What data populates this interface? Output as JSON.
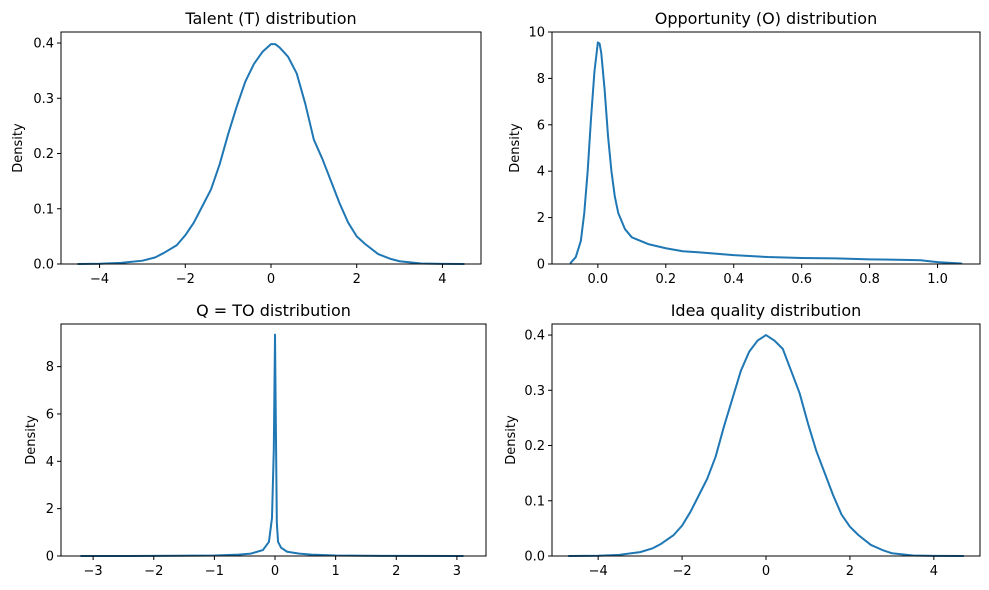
{
  "figure": {
    "background": "#ffffff",
    "line_color": "#1f77b4"
  },
  "chart_data": [
    {
      "type": "line",
      "title": "Talent (T) distribution",
      "xlabel": "",
      "ylabel": "Density",
      "xlim": [
        -4.9,
        4.9
      ],
      "ylim": [
        0,
        0.42
      ],
      "xticks": [
        -4,
        -2,
        0,
        2,
        4
      ],
      "xtick_labels": [
        "−4",
        "−2",
        "0",
        "2",
        "4"
      ],
      "yticks": [
        0.0,
        0.1,
        0.2,
        0.3,
        0.4
      ],
      "ytick_labels": [
        "0.0",
        "0.1",
        "0.2",
        "0.3",
        "0.4"
      ],
      "grid": false,
      "series": [
        {
          "x": [
            -4.5,
            -4.0,
            -3.5,
            -3.0,
            -2.7,
            -2.5,
            -2.2,
            -2.0,
            -1.8,
            -1.6,
            -1.4,
            -1.2,
            -1.0,
            -0.8,
            -0.6,
            -0.4,
            -0.2,
            0.0,
            0.1,
            0.2,
            0.4,
            0.6,
            0.8,
            1.0,
            1.2,
            1.4,
            1.6,
            1.8,
            2.0,
            2.2,
            2.5,
            2.8,
            3.0,
            3.5,
            4.0,
            4.5
          ],
          "y": [
            0.0,
            0.0005,
            0.002,
            0.006,
            0.012,
            0.02,
            0.034,
            0.052,
            0.075,
            0.105,
            0.135,
            0.18,
            0.235,
            0.285,
            0.33,
            0.362,
            0.384,
            0.398,
            0.398,
            0.392,
            0.375,
            0.345,
            0.29,
            0.225,
            0.19,
            0.15,
            0.11,
            0.075,
            0.05,
            0.036,
            0.018,
            0.009,
            0.005,
            0.001,
            0.0003,
            0.0
          ]
        }
      ]
    },
    {
      "type": "line",
      "title": "Opportunity (O) distribution",
      "xlabel": "",
      "ylabel": "Density",
      "xlim": [
        -0.135,
        1.125
      ],
      "ylim": [
        0,
        10
      ],
      "xticks": [
        0.0,
        0.2,
        0.4,
        0.6,
        0.8,
        1.0
      ],
      "xtick_labels": [
        "0.0",
        "0.2",
        "0.4",
        "0.6",
        "0.8",
        "1.0"
      ],
      "yticks": [
        0,
        2,
        4,
        6,
        8,
        10
      ],
      "ytick_labels": [
        "0",
        "2",
        "4",
        "6",
        "8",
        "10"
      ],
      "grid": false,
      "series": [
        {
          "x": [
            -0.08,
            -0.065,
            -0.05,
            -0.04,
            -0.03,
            -0.02,
            -0.01,
            0.0,
            0.005,
            0.01,
            0.02,
            0.03,
            0.04,
            0.05,
            0.06,
            0.08,
            0.1,
            0.15,
            0.2,
            0.25,
            0.3,
            0.4,
            0.5,
            0.6,
            0.7,
            0.8,
            0.9,
            0.95,
            1.0,
            1.07
          ],
          "y": [
            0.05,
            0.3,
            1.0,
            2.2,
            4.0,
            6.3,
            8.3,
            9.55,
            9.5,
            9.1,
            7.5,
            5.5,
            4.0,
            2.9,
            2.2,
            1.5,
            1.15,
            0.85,
            0.68,
            0.55,
            0.5,
            0.38,
            0.3,
            0.26,
            0.24,
            0.2,
            0.18,
            0.16,
            0.08,
            0.02
          ]
        }
      ]
    },
    {
      "type": "line",
      "title": "Q = TO distribution",
      "xlabel": "",
      "ylabel": "Density",
      "xlim": [
        -3.53,
        3.48
      ],
      "ylim": [
        0,
        9.8
      ],
      "xticks": [
        -3,
        -2,
        -1,
        0,
        1,
        2,
        3
      ],
      "xtick_labels": [
        "−3",
        "−2",
        "−1",
        "0",
        "1",
        "2",
        "3"
      ],
      "yticks": [
        0,
        2,
        4,
        6,
        8
      ],
      "ytick_labels": [
        "0",
        "2",
        "4",
        "6",
        "8"
      ],
      "grid": false,
      "series": [
        {
          "x": [
            -3.2,
            -2.0,
            -1.0,
            -0.6,
            -0.4,
            -0.2,
            -0.1,
            -0.05,
            -0.02,
            0.0,
            0.01,
            0.03,
            0.05,
            0.1,
            0.2,
            0.4,
            0.6,
            1.0,
            2.0,
            3.1
          ],
          "y": [
            0.0,
            0.003,
            0.02,
            0.06,
            0.1,
            0.25,
            0.6,
            1.6,
            4.5,
            9.35,
            6.5,
            1.4,
            0.6,
            0.35,
            0.18,
            0.1,
            0.06,
            0.02,
            0.003,
            0.0
          ]
        }
      ]
    },
    {
      "type": "line",
      "title": "Idea quality distribution",
      "xlabel": "",
      "ylabel": "Density",
      "xlim": [
        -5.1,
        5.1
      ],
      "ylim": [
        0,
        0.42
      ],
      "xticks": [
        -4,
        -2,
        0,
        2,
        4
      ],
      "xtick_labels": [
        "−4",
        "−2",
        "0",
        "2",
        "4"
      ],
      "yticks": [
        0.0,
        0.1,
        0.2,
        0.3,
        0.4
      ],
      "ytick_labels": [
        "0.0",
        "0.1",
        "0.2",
        "0.3",
        "0.4"
      ],
      "grid": false,
      "series": [
        {
          "x": [
            -4.7,
            -4.0,
            -3.5,
            -3.0,
            -2.7,
            -2.5,
            -2.2,
            -2.0,
            -1.8,
            -1.6,
            -1.4,
            -1.2,
            -1.0,
            -0.8,
            -0.6,
            -0.4,
            -0.2,
            0.0,
            0.2,
            0.4,
            0.6,
            0.8,
            1.0,
            1.2,
            1.4,
            1.6,
            1.8,
            2.0,
            2.2,
            2.5,
            2.8,
            3.0,
            3.5,
            4.0,
            4.7
          ],
          "y": [
            0.0,
            0.0005,
            0.002,
            0.007,
            0.014,
            0.022,
            0.038,
            0.055,
            0.08,
            0.11,
            0.14,
            0.18,
            0.235,
            0.285,
            0.335,
            0.37,
            0.39,
            0.4,
            0.39,
            0.375,
            0.335,
            0.295,
            0.24,
            0.19,
            0.15,
            0.11,
            0.075,
            0.053,
            0.038,
            0.02,
            0.01,
            0.005,
            0.001,
            0.0003,
            0.0
          ]
        }
      ]
    }
  ]
}
